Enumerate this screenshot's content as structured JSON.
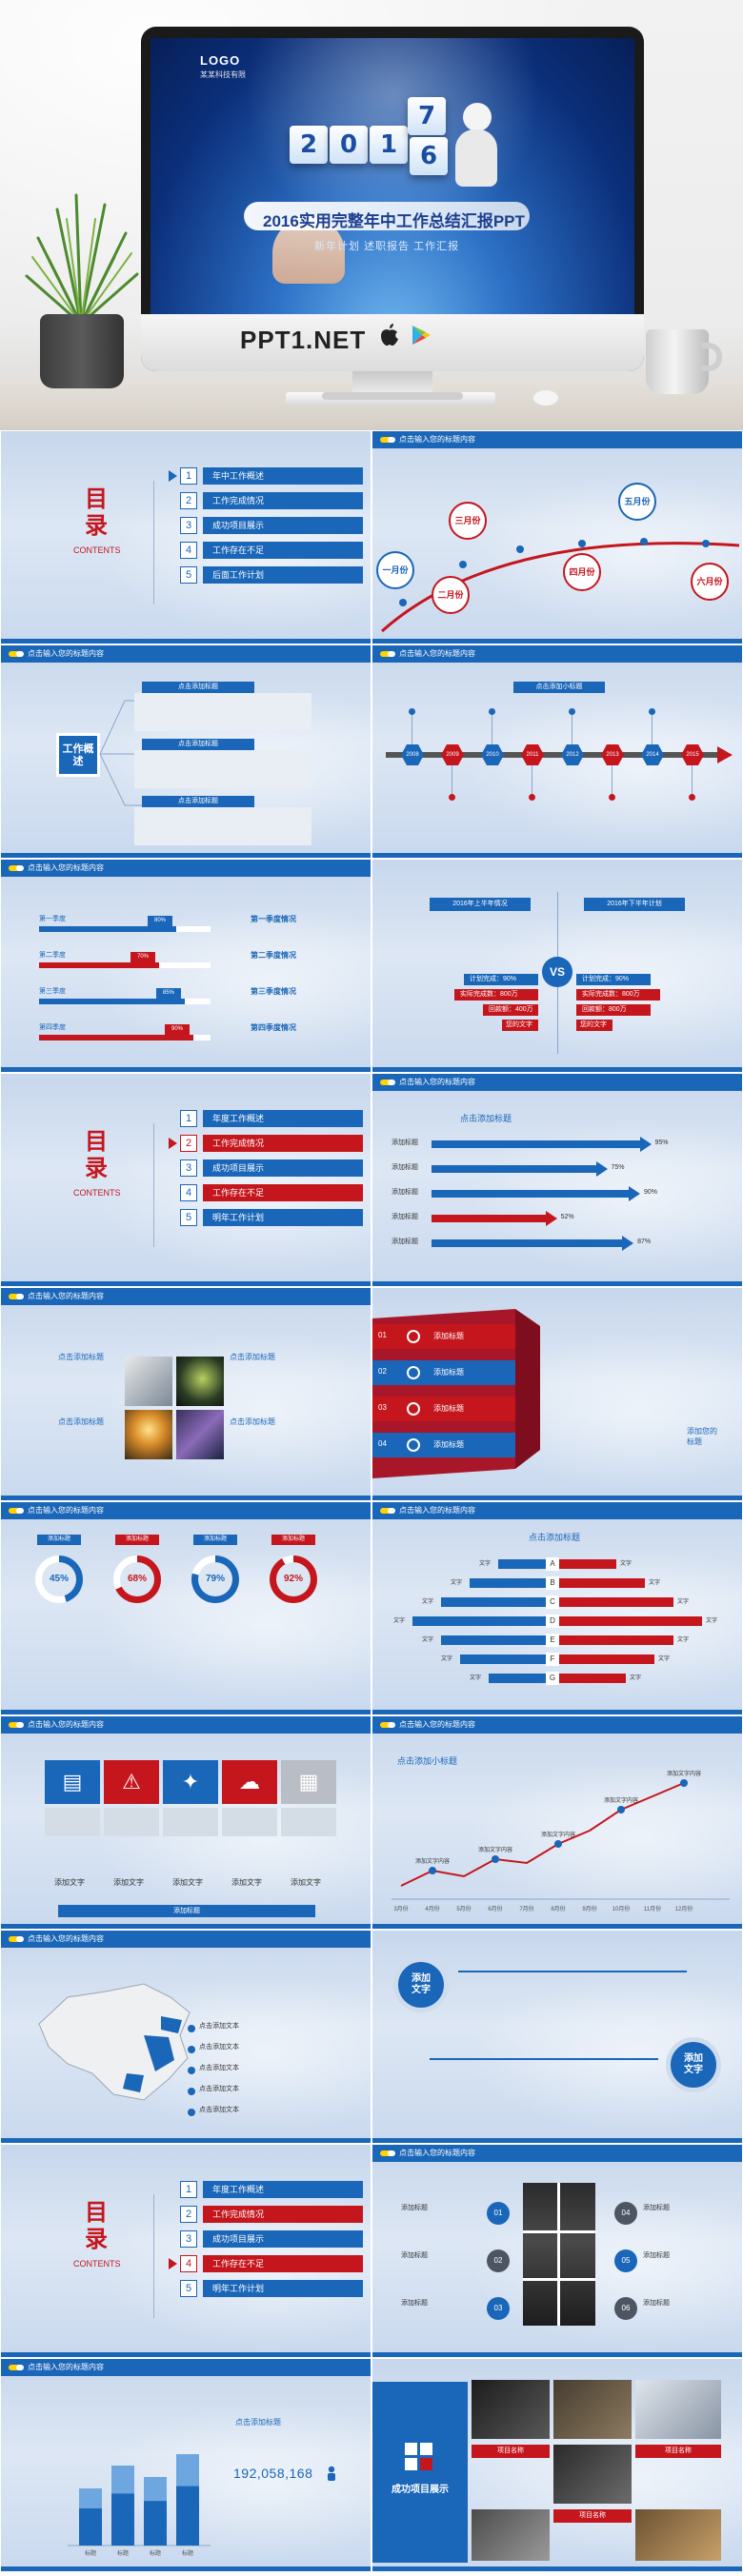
{
  "hero": {
    "logo": "LOGO",
    "logo_sub": "某某科技有限",
    "cubes": [
      "2",
      "0",
      "1",
      "7",
      "6"
    ],
    "title": "2016实用完整年中工作总结汇报PPT",
    "subtitle": "新年计划 述职报告 工作汇报",
    "brand": "PPT1.NET"
  },
  "slide_header": "点击输入您的标题内容",
  "toc": {
    "title_chars": [
      "目",
      "录"
    ],
    "contents_label": "CONTENTS",
    "nums": [
      "1",
      "2",
      "3",
      "4",
      "5"
    ],
    "items_a": [
      "年中工作概述",
      "工作完成情况",
      "成功项目展示",
      "工作存在不足",
      "后面工作计划"
    ],
    "items_b": [
      "年度工作概述",
      "工作完成情况",
      "成功项目展示",
      "工作存在不足",
      "明年工作计划"
    ]
  },
  "months_slide": {
    "nodes": [
      "一月份",
      "二月份",
      "三月份",
      "四月份",
      "五月份",
      "六月份"
    ]
  },
  "overview_slide": {
    "label": "工作概述",
    "item_title": "点击添加标题"
  },
  "timeline_slide": {
    "title": "点击添加小标题",
    "years": [
      "2008",
      "2009",
      "2010",
      "2011",
      "2012",
      "2013",
      "2014",
      "2015"
    ]
  },
  "quarter_slide": {
    "quarters": [
      "第一季度",
      "第二季度",
      "第三季度",
      "第四季度"
    ],
    "percents": [
      "80%",
      "70%",
      "85%",
      "90%"
    ],
    "values": [
      80,
      70,
      85,
      90
    ],
    "notes": [
      "第一季度情况",
      "第二季度情况",
      "第三季度情况",
      "第四季度情况"
    ]
  },
  "vs_slide": {
    "left_title": "2016年上半年情况",
    "right_title": "2016年下半年计划",
    "vs": "VS",
    "left_items": [
      "计划完成：90%",
      "实际完成数：800万",
      "回款额：400万",
      "您的文字"
    ],
    "right_items": [
      "计划完成：90%",
      "实际完成数：800万",
      "回款额：800万",
      "您的文字"
    ]
  },
  "progress_slide": {
    "title": "点击添加标题",
    "row_label": "添加标题",
    "percents": [
      "95%",
      "75%",
      "90%",
      "52%",
      "87%"
    ],
    "values": [
      95,
      75,
      90,
      52,
      87
    ]
  },
  "photo_slide": {
    "item_title": "点击添加标题"
  },
  "ribbon_slide": {
    "nums": [
      "01",
      "02",
      "03",
      "04"
    ],
    "label": "添加标题",
    "side_title": "添加您的\n标题",
    "side_title_lines": [
      "添加您的",
      "标题"
    ]
  },
  "rings_slide": {
    "tag": "添加标题",
    "percents": [
      "45%",
      "68%",
      "79%",
      "92%"
    ],
    "values": [
      45,
      68,
      79,
      92
    ]
  },
  "butterfly_slide": {
    "title": "点击添加标题",
    "letters": [
      "A",
      "B",
      "C",
      "D",
      "E",
      "F",
      "G"
    ],
    "label": "文字"
  },
  "icons_slide": {
    "caption": "添加文字",
    "bottom": "添加标题"
  },
  "line_slide": {
    "title": "点击添加小标题",
    "point_label": "添加文字内容",
    "months": [
      "3月份",
      "4月份",
      "5月份",
      "6月份",
      "7月份",
      "8月份",
      "9月份",
      "10月份",
      "11月份",
      "12月份"
    ]
  },
  "map_slide": {
    "label": "点击添加文本"
  },
  "add_text_slide": {
    "badge_lines": [
      "添加",
      "文字"
    ]
  },
  "puzzle_slide": {
    "nums": [
      "01",
      "02",
      "03",
      "04",
      "05",
      "06"
    ],
    "label": "添加标题"
  },
  "column_slide": {
    "title": "点击添加标题",
    "number": "192,058,168",
    "cats": [
      "标题",
      "标题",
      "标题",
      "标题"
    ],
    "values": [
      50,
      70,
      60,
      80
    ]
  },
  "project_slide": {
    "title": "成功项目展示",
    "labels": [
      "项目名称",
      "项目名称",
      "项目名称"
    ]
  },
  "colors": {
    "blue": "#1a66b8",
    "red": "#c5161d",
    "light": "#dde7f4"
  }
}
